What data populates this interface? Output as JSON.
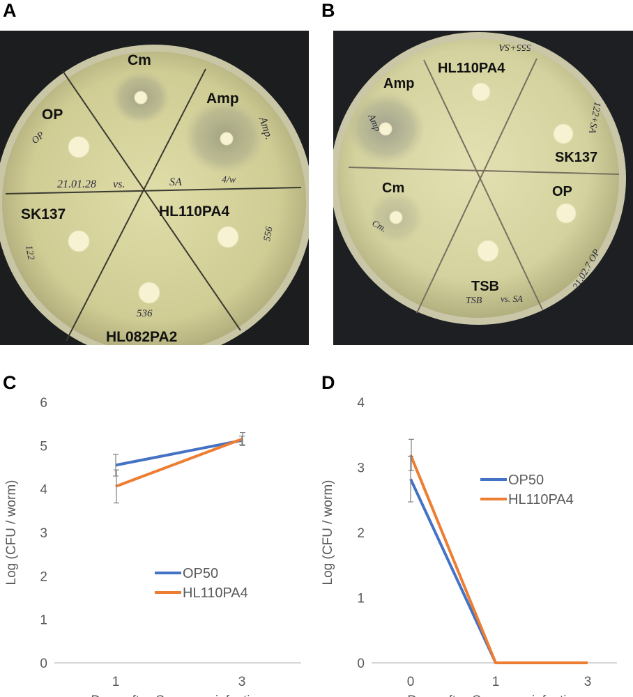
{
  "panels": {
    "a": {
      "letter": "A",
      "labels": {
        "cm": "Cm",
        "amp": "Amp",
        "op": "OP",
        "sk137": "SK137",
        "hl110pa4": "HL110PA4",
        "hl082pa2": "HL082PA2"
      },
      "handwriting": {
        "date": "21.01.28",
        "vs": "vs.",
        "sa": "SA",
        "op_note": "OP",
        "amp_note": "Amp.",
        "sk_note": "122",
        "hl110_note": "556",
        "hl082_note": "536",
        "misc": "4/w"
      }
    },
    "b": {
      "letter": "B",
      "labels": {
        "amp": "Amp",
        "hl110pa4": "HL110PA4",
        "sk137": "SK137",
        "cm": "Cm",
        "op": "OP",
        "tsb": "TSB"
      },
      "handwriting": {
        "amp_note": "Amp",
        "top_note": "555+SA",
        "sk_note": "122+SA",
        "cm_note": "Cm.",
        "date_note": "21.02.7 OP",
        "tsb_note": "TSB",
        "vs_note": "vs. SA"
      }
    },
    "c": {
      "letter": "C",
      "chart_data": {
        "type": "line",
        "x": [
          1,
          3
        ],
        "xtick_labels": [
          "1",
          "3"
        ],
        "ylim": [
          0,
          6
        ],
        "yticks": [
          "0",
          "1",
          "2",
          "3",
          "4",
          "5",
          "6"
        ],
        "ylabel": "Log (CFU / worm)",
        "xlabel_prefix": "Days after ",
        "xlabel_italic": "S. aureus",
        "xlabel_suffix": " infection",
        "legend_position": "center-right",
        "series": [
          {
            "name": "OP50",
            "color": "#4472C4",
            "values": [
              4.55,
              5.12
            ],
            "errors": [
              0.25,
              0.1
            ]
          },
          {
            "name": "HL110PA4",
            "color": "#ED7D31",
            "values": [
              4.06,
              5.15
            ],
            "errors": [
              0.38,
              0.15
            ]
          }
        ]
      }
    },
    "d": {
      "letter": "D",
      "chart_data": {
        "type": "line",
        "x": [
          0,
          1,
          3
        ],
        "xtick_labels": [
          "0",
          "1",
          "3"
        ],
        "ylim": [
          0,
          4
        ],
        "yticks": [
          "0",
          "1",
          "2",
          "3",
          "4"
        ],
        "ylabel": "Log (CFU / worm)",
        "xlabel_prefix": "Days after ",
        "xlabel_italic": "S. aureus",
        "xlabel_suffix": " infection",
        "legend_position": "top-right",
        "series": [
          {
            "name": "OP50",
            "color": "#4472C4",
            "values": [
              2.82,
              0,
              0
            ],
            "errors": [
              0.35,
              0,
              0
            ]
          },
          {
            "name": "HL110PA4",
            "color": "#ED7D31",
            "values": [
              3.19,
              0,
              0
            ],
            "errors": [
              0.24,
              0,
              0
            ]
          }
        ]
      }
    }
  }
}
